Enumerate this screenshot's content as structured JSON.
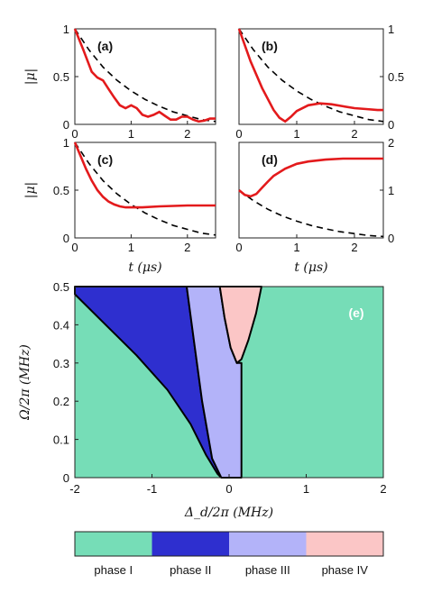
{
  "chart_data": [
    {
      "panel": "(a)",
      "type": "line",
      "xlim": [
        0,
        2.5
      ],
      "ylim": [
        0,
        1
      ],
      "xticks": [
        "0",
        "1",
        "2"
      ],
      "yticks": [
        "0",
        "0.5",
        "1"
      ],
      "ylabel": "|μ|",
      "xlabel": "",
      "series": [
        {
          "style": "black-dashed",
          "x": [
            0,
            0.25,
            0.5,
            0.75,
            1,
            1.25,
            1.5,
            1.75,
            2,
            2.25,
            2.5
          ],
          "y": [
            1,
            0.78,
            0.6,
            0.46,
            0.35,
            0.26,
            0.19,
            0.13,
            0.09,
            0.05,
            0.03
          ]
        },
        {
          "style": "red-solid",
          "x": [
            0,
            0.15,
            0.3,
            0.4,
            0.5,
            0.6,
            0.7,
            0.8,
            0.9,
            1.0,
            1.1,
            1.2,
            1.3,
            1.4,
            1.5,
            1.6,
            1.7,
            1.8,
            1.9,
            2.0,
            2.1,
            2.2,
            2.3,
            2.4,
            2.5
          ],
          "y": [
            1,
            0.78,
            0.55,
            0.49,
            0.46,
            0.37,
            0.28,
            0.2,
            0.17,
            0.2,
            0.17,
            0.1,
            0.08,
            0.1,
            0.13,
            0.09,
            0.05,
            0.05,
            0.08,
            0.08,
            0.05,
            0.03,
            0.04,
            0.06,
            0.06
          ]
        }
      ]
    },
    {
      "panel": "(b)",
      "type": "line",
      "xlim": [
        0,
        2.5
      ],
      "ylim": [
        0,
        1
      ],
      "xticks": [
        "0",
        "1",
        "2"
      ],
      "yticks": [
        "0",
        "0.5",
        "1"
      ],
      "yaxis_side": "right",
      "series": [
        {
          "style": "black-dashed",
          "x": [
            0,
            0.25,
            0.5,
            0.75,
            1,
            1.25,
            1.5,
            1.75,
            2,
            2.25,
            2.5
          ],
          "y": [
            1,
            0.78,
            0.6,
            0.46,
            0.35,
            0.26,
            0.19,
            0.13,
            0.09,
            0.05,
            0.03
          ]
        },
        {
          "style": "red-solid",
          "x": [
            0,
            0.2,
            0.4,
            0.6,
            0.7,
            0.8,
            0.9,
            1.0,
            1.2,
            1.4,
            1.6,
            1.8,
            2.0,
            2.2,
            2.4,
            2.5
          ],
          "y": [
            1,
            0.66,
            0.38,
            0.15,
            0.07,
            0.03,
            0.08,
            0.14,
            0.2,
            0.22,
            0.21,
            0.19,
            0.17,
            0.16,
            0.15,
            0.15
          ]
        }
      ]
    },
    {
      "panel": "(c)",
      "type": "line",
      "xlim": [
        0,
        2.5
      ],
      "ylim": [
        0,
        1
      ],
      "xticks": [
        "0",
        "1",
        "2"
      ],
      "yticks": [
        "0",
        "0.5",
        "1"
      ],
      "ylabel": "|μ|",
      "xlabel": "t (μs)",
      "series": [
        {
          "style": "black-dashed",
          "x": [
            0,
            0.25,
            0.5,
            0.75,
            1,
            1.25,
            1.5,
            1.75,
            2,
            2.25,
            2.5
          ],
          "y": [
            1,
            0.78,
            0.6,
            0.46,
            0.35,
            0.26,
            0.19,
            0.13,
            0.09,
            0.05,
            0.03
          ]
        },
        {
          "style": "red-solid",
          "x": [
            0,
            0.1,
            0.2,
            0.3,
            0.4,
            0.5,
            0.6,
            0.7,
            0.8,
            0.9,
            1.0,
            1.2,
            1.5,
            2.0,
            2.5
          ],
          "y": [
            1,
            0.86,
            0.72,
            0.6,
            0.5,
            0.43,
            0.38,
            0.35,
            0.33,
            0.32,
            0.32,
            0.32,
            0.33,
            0.34,
            0.34
          ]
        }
      ]
    },
    {
      "panel": "(d)",
      "type": "line",
      "xlim": [
        0,
        2.5
      ],
      "ylim": [
        0,
        2
      ],
      "xticks": [
        "0",
        "1",
        "2"
      ],
      "yticks": [
        "0",
        "1",
        "2"
      ],
      "yaxis_side": "right",
      "xlabel": "t (μs)",
      "series": [
        {
          "style": "black-dashed",
          "x": [
            0,
            0.25,
            0.5,
            0.75,
            1,
            1.25,
            1.5,
            1.75,
            2,
            2.25,
            2.5
          ],
          "y": [
            1,
            0.78,
            0.6,
            0.46,
            0.35,
            0.26,
            0.19,
            0.13,
            0.09,
            0.05,
            0.03
          ]
        },
        {
          "style": "red-solid",
          "x": [
            0,
            0.1,
            0.2,
            0.3,
            0.4,
            0.5,
            0.6,
            0.8,
            1.0,
            1.2,
            1.5,
            1.8,
            2.0,
            2.2,
            2.5
          ],
          "y": [
            1,
            0.9,
            0.87,
            0.92,
            1.05,
            1.18,
            1.3,
            1.45,
            1.55,
            1.6,
            1.64,
            1.66,
            1.66,
            1.66,
            1.66
          ]
        }
      ]
    },
    {
      "panel": "(e)",
      "type": "area",
      "xlim": [
        -2,
        2
      ],
      "ylim": [
        0,
        0.5
      ],
      "xticks": [
        "-2",
        "-1",
        "0",
        "1",
        "2"
      ],
      "yticks": [
        "0",
        "0.1",
        "0.2",
        "0.3",
        "0.4",
        "0.5"
      ],
      "xlabel": "Δ_d/2π (MHz)",
      "ylabel": "Ω/2π (MHz)",
      "regions": [
        {
          "name": "phase II",
          "color": "#2e2fcf",
          "polygon": [
            [
              -2,
              0.48
            ],
            [
              -1.6,
              0.4
            ],
            [
              -1.2,
              0.32
            ],
            [
              -0.8,
              0.23
            ],
            [
              -0.5,
              0.14
            ],
            [
              -0.3,
              0.06
            ],
            [
              -0.15,
              0.01
            ],
            [
              -0.1,
              0
            ],
            [
              -0.22,
              0.05
            ],
            [
              -0.35,
              0.2
            ],
            [
              -0.45,
              0.35
            ],
            [
              -0.55,
              0.5
            ],
            [
              -2,
              0.5
            ]
          ]
        },
        {
          "name": "phase III",
          "color": "#b3b3f9",
          "polygon": [
            [
              -0.1,
              0
            ],
            [
              0.16,
              0
            ],
            [
              0.16,
              0.3
            ],
            [
              0.1,
              0.3
            ],
            [
              0.02,
              0.34
            ],
            [
              -0.06,
              0.42
            ],
            [
              -0.12,
              0.5
            ],
            [
              -0.55,
              0.5
            ],
            [
              -0.45,
              0.35
            ],
            [
              -0.35,
              0.2
            ],
            [
              -0.22,
              0.05
            ]
          ]
        },
        {
          "name": "phase IV",
          "color": "#fbc6c6",
          "polygon": [
            [
              -0.12,
              0.5
            ],
            [
              -0.06,
              0.42
            ],
            [
              0.02,
              0.34
            ],
            [
              0.1,
              0.3
            ],
            [
              0.16,
              0.31
            ],
            [
              0.25,
              0.36
            ],
            [
              0.35,
              0.43
            ],
            [
              0.42,
              0.5
            ]
          ]
        }
      ],
      "background_phase": "phase I",
      "background_color": "#76ddb7"
    }
  ],
  "legend": {
    "items": [
      {
        "label": "phase I",
        "color": "#76ddb7"
      },
      {
        "label": "phase II",
        "color": "#2e2fcf"
      },
      {
        "label": "phase III",
        "color": "#b3b3f9"
      },
      {
        "label": "phase IV",
        "color": "#fbc6c6"
      }
    ]
  }
}
